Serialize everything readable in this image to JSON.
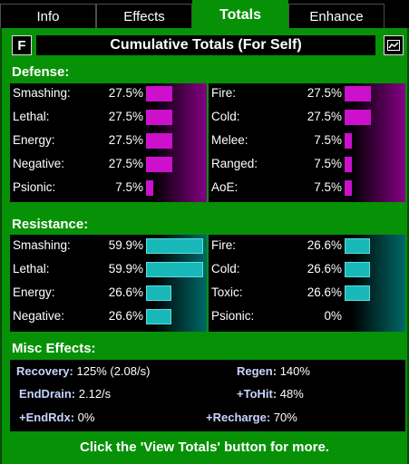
{
  "tabs": [
    {
      "label": "Info"
    },
    {
      "label": "Effects"
    },
    {
      "label": "Totals"
    },
    {
      "label": "Enhance"
    }
  ],
  "header": {
    "f_label": "F",
    "title": "Cumulative Totals (For Self)",
    "graph_icon": "graph-icon"
  },
  "defense": {
    "label": "Defense:",
    "left": [
      {
        "name": "Smashing:",
        "value": "27.5%",
        "pct": 27.5
      },
      {
        "name": "Lethal:",
        "value": "27.5%",
        "pct": 27.5
      },
      {
        "name": "Energy:",
        "value": "27.5%",
        "pct": 27.5
      },
      {
        "name": "Negative:",
        "value": "27.5%",
        "pct": 27.5
      },
      {
        "name": "Psionic:",
        "value": "7.5%",
        "pct": 7.5
      }
    ],
    "right": [
      {
        "name": "Fire:",
        "value": "27.5%",
        "pct": 27.5
      },
      {
        "name": "Cold:",
        "value": "27.5%",
        "pct": 27.5
      },
      {
        "name": "Melee:",
        "value": "7.5%",
        "pct": 7.5
      },
      {
        "name": "Ranged:",
        "value": "7.5%",
        "pct": 7.5
      },
      {
        "name": "AoE:",
        "value": "7.5%",
        "pct": 7.5
      }
    ],
    "bar_color": "#cc10cc"
  },
  "resistance": {
    "label": "Resistance:",
    "left": [
      {
        "name": "Smashing:",
        "value": "59.9%",
        "pct": 59.9
      },
      {
        "name": "Lethal:",
        "value": "59.9%",
        "pct": 59.9
      },
      {
        "name": "Energy:",
        "value": "26.6%",
        "pct": 26.6
      },
      {
        "name": "Negative:",
        "value": "26.6%",
        "pct": 26.6
      }
    ],
    "right": [
      {
        "name": "Fire:",
        "value": "26.6%",
        "pct": 26.6
      },
      {
        "name": "Cold:",
        "value": "26.6%",
        "pct": 26.6
      },
      {
        "name": "Toxic:",
        "value": "26.6%",
        "pct": 26.6
      },
      {
        "name": "Psionic:",
        "value": "0%",
        "pct": 0
      }
    ],
    "bar_color": "#18b8b8"
  },
  "misc": {
    "label": "Misc Effects:",
    "recovery_key": "Recovery:",
    "recovery_val": "125% (2.08/s)",
    "regen_key": "Regen:",
    "regen_val": "140%",
    "enddrain_key": "EndDrain:",
    "enddrain_val": "2.12/s",
    "tohit_key": "+ToHit:",
    "tohit_val": "48%",
    "endrdx_key": "+EndRdx:",
    "endrdx_val": "0%",
    "recharge_key": "+Recharge:",
    "recharge_val": "70%"
  },
  "footer": "Click the 'View Totals' button for more.",
  "colors": {
    "panel_green": "#079107",
    "defense_bar": "#cc10cc",
    "resistance_bar": "#18b8b8",
    "misc_key": "#c8d4ff"
  }
}
